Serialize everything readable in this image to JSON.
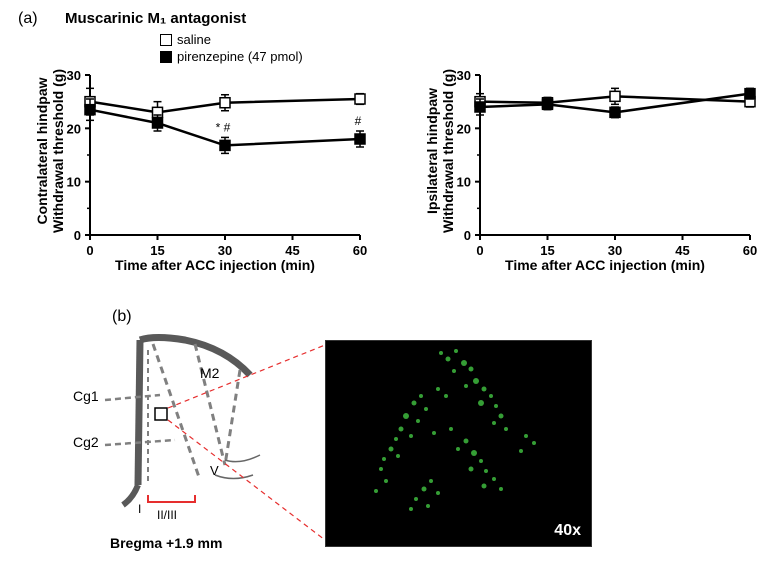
{
  "panel_a": {
    "label": "(a)",
    "title": "Muscarinic M₁ antagonist",
    "legend": {
      "saline": "saline",
      "pirenzepine": "pirenzepine (47 pmol)"
    },
    "chart_left": {
      "ylabel_line1": "Contralateral hindpaw",
      "ylabel_line2": "Withdrawal threshold (g)",
      "xlabel": "Time after ACC injection (min)",
      "ylim": [
        0,
        30
      ],
      "yticks": [
        0,
        10,
        20,
        30
      ],
      "xlim": [
        0,
        60
      ],
      "xticks": [
        0,
        15,
        30,
        45,
        60
      ],
      "series_saline": {
        "x": [
          0,
          15,
          30,
          60
        ],
        "y": [
          25,
          23,
          24.8,
          25.5
        ],
        "err": [
          2.5,
          2,
          1.5,
          1
        ],
        "color": "#000000",
        "marker": "open_square",
        "linewidth": 2.5
      },
      "series_pirenzepine": {
        "x": [
          0,
          15,
          30,
          60
        ],
        "y": [
          23.5,
          21,
          16.8,
          18
        ],
        "err": [
          2,
          1.5,
          1.5,
          1.5
        ],
        "color": "#000000",
        "marker": "filled_square",
        "linewidth": 2.5,
        "annotations": [
          {
            "x": 30,
            "text": "* #"
          },
          {
            "x": 60,
            "text": "#"
          }
        ]
      }
    },
    "chart_right": {
      "ylabel_line1": "Ipsilateral hindpaw",
      "ylabel_line2": "Withdrawal threshold (g)",
      "xlabel": "Time after ACC injection (min)",
      "ylim": [
        0,
        30
      ],
      "yticks": [
        0,
        10,
        20,
        30
      ],
      "xlim": [
        0,
        60
      ],
      "xticks": [
        0,
        15,
        30,
        45,
        60
      ],
      "series_saline": {
        "x": [
          0,
          15,
          30,
          60
        ],
        "y": [
          25,
          24.8,
          26,
          25
        ],
        "err": [
          1.5,
          1,
          1.5,
          1
        ],
        "color": "#000000",
        "marker": "open_square",
        "linewidth": 2.5
      },
      "series_pirenzepine": {
        "x": [
          0,
          15,
          30,
          60
        ],
        "y": [
          24,
          24.5,
          23,
          26.5
        ],
        "err": [
          1.5,
          1,
          1,
          1
        ],
        "color": "#000000",
        "marker": "filled_square",
        "linewidth": 2.5
      }
    }
  },
  "panel_b": {
    "label": "(b)",
    "diagram": {
      "labels": {
        "m2": "M2",
        "cg1": "Cg1",
        "cg2": "Cg2",
        "i": "I",
        "ii_iii": "II/III",
        "v": "V",
        "bregma": "Bregma  +1.9 mm"
      },
      "stroke_color": "#595959",
      "dash_color": "#808080",
      "marker_color": "#e62e2e",
      "line_width": 4
    },
    "micrograph": {
      "magnification": "40x",
      "background": "#000000",
      "signal_color": "#3fba3f",
      "frame_color": "#e62e2e"
    }
  }
}
